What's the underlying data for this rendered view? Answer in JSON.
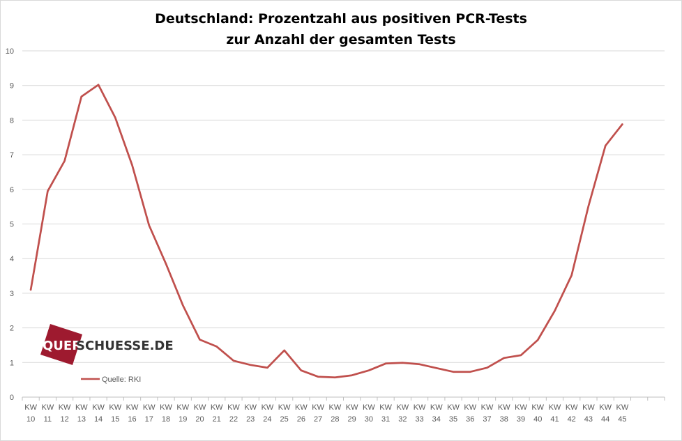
{
  "chart_data": {
    "type": "line",
    "title_line1": "Deutschland: Prozentzahl aus positiven PCR-Tests",
    "title_line2": "zur Anzahl der gesamten Tests",
    "categories": [
      [
        "KW",
        "10"
      ],
      [
        "KW",
        "11"
      ],
      [
        "KW",
        "12"
      ],
      [
        "KW",
        "13"
      ],
      [
        "KW",
        "14"
      ],
      [
        "KW",
        "15"
      ],
      [
        "KW",
        "16"
      ],
      [
        "KW",
        "17"
      ],
      [
        "KW",
        "18"
      ],
      [
        "KW",
        "19"
      ],
      [
        "KW",
        "20"
      ],
      [
        "KW",
        "21"
      ],
      [
        "KW",
        "22"
      ],
      [
        "KW",
        "23"
      ],
      [
        "KW",
        "24"
      ],
      [
        "KW",
        "25"
      ],
      [
        "KW",
        "26"
      ],
      [
        "KW",
        "27"
      ],
      [
        "KW",
        "28"
      ],
      [
        "KW",
        "29"
      ],
      [
        "KW",
        "30"
      ],
      [
        "KW",
        "31"
      ],
      [
        "KW",
        "32"
      ],
      [
        "KW",
        "33"
      ],
      [
        "KW",
        "34"
      ],
      [
        "KW",
        "35"
      ],
      [
        "KW",
        "36"
      ],
      [
        "KW",
        "37"
      ],
      [
        "KW",
        "38"
      ],
      [
        "KW",
        "39"
      ],
      [
        "KW",
        "40"
      ],
      [
        "KW",
        "41"
      ],
      [
        "KW",
        "42"
      ],
      [
        "KW",
        "43"
      ],
      [
        "KW",
        "44"
      ],
      [
        "KW",
        "45"
      ]
    ],
    "series": [
      {
        "name": "Quelle: RKI",
        "color": "#c0504d",
        "values": [
          3.1,
          5.95,
          6.82,
          8.68,
          9.02,
          8.07,
          6.7,
          4.96,
          3.85,
          2.65,
          1.66,
          1.46,
          1.05,
          0.93,
          0.85,
          1.35,
          0.77,
          0.59,
          0.57,
          0.63,
          0.77,
          0.97,
          0.99,
          0.95,
          0.84,
          0.73,
          0.73,
          0.85,
          1.13,
          1.21,
          1.65,
          2.49,
          3.52,
          5.52,
          7.26,
          7.88
        ]
      }
    ],
    "ylim": [
      0,
      10
    ],
    "yticks": [
      0,
      1,
      2,
      3,
      4,
      5,
      6,
      7,
      8,
      9,
      10
    ],
    "grid": true,
    "legend_position": "bottom-left"
  },
  "logo": {
    "text_part1": "QUER",
    "text_part2": "SCHUESSE.DE",
    "accent_color": "#9e1a2f",
    "text_color": "#333333"
  }
}
